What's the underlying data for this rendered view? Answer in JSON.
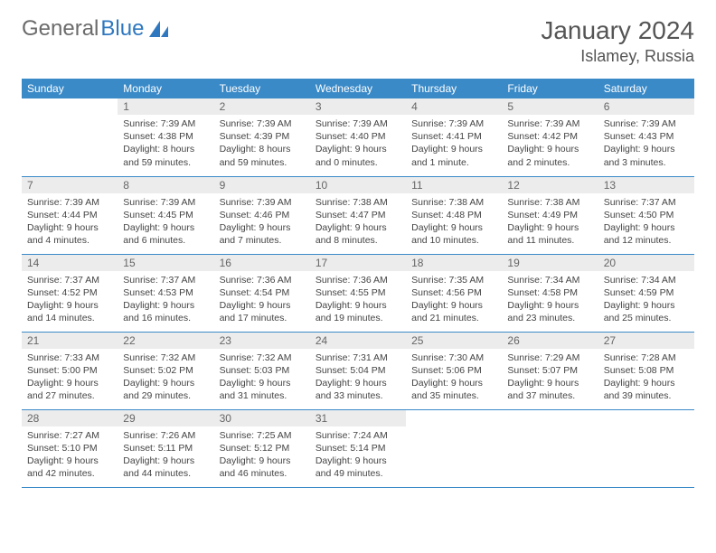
{
  "logo": {
    "word1": "General",
    "word2": "Blue"
  },
  "title": "January 2024",
  "location": "Islamey, Russia",
  "colors": {
    "header_bg": "#3a8ac8",
    "header_fg": "#ffffff",
    "daynum_bg": "#ececec",
    "row_border": "#3a8ac8",
    "logo_gray": "#6b6b6b",
    "logo_blue": "#2f78bf"
  },
  "weekdays": [
    "Sunday",
    "Monday",
    "Tuesday",
    "Wednesday",
    "Thursday",
    "Friday",
    "Saturday"
  ],
  "weeks": [
    [
      {
        "empty": true
      },
      {
        "num": "1",
        "sunrise": "Sunrise: 7:39 AM",
        "sunset": "Sunset: 4:38 PM",
        "day1": "Daylight: 8 hours",
        "day2": "and 59 minutes."
      },
      {
        "num": "2",
        "sunrise": "Sunrise: 7:39 AM",
        "sunset": "Sunset: 4:39 PM",
        "day1": "Daylight: 8 hours",
        "day2": "and 59 minutes."
      },
      {
        "num": "3",
        "sunrise": "Sunrise: 7:39 AM",
        "sunset": "Sunset: 4:40 PM",
        "day1": "Daylight: 9 hours",
        "day2": "and 0 minutes."
      },
      {
        "num": "4",
        "sunrise": "Sunrise: 7:39 AM",
        "sunset": "Sunset: 4:41 PM",
        "day1": "Daylight: 9 hours",
        "day2": "and 1 minute."
      },
      {
        "num": "5",
        "sunrise": "Sunrise: 7:39 AM",
        "sunset": "Sunset: 4:42 PM",
        "day1": "Daylight: 9 hours",
        "day2": "and 2 minutes."
      },
      {
        "num": "6",
        "sunrise": "Sunrise: 7:39 AM",
        "sunset": "Sunset: 4:43 PM",
        "day1": "Daylight: 9 hours",
        "day2": "and 3 minutes."
      }
    ],
    [
      {
        "num": "7",
        "sunrise": "Sunrise: 7:39 AM",
        "sunset": "Sunset: 4:44 PM",
        "day1": "Daylight: 9 hours",
        "day2": "and 4 minutes."
      },
      {
        "num": "8",
        "sunrise": "Sunrise: 7:39 AM",
        "sunset": "Sunset: 4:45 PM",
        "day1": "Daylight: 9 hours",
        "day2": "and 6 minutes."
      },
      {
        "num": "9",
        "sunrise": "Sunrise: 7:39 AM",
        "sunset": "Sunset: 4:46 PM",
        "day1": "Daylight: 9 hours",
        "day2": "and 7 minutes."
      },
      {
        "num": "10",
        "sunrise": "Sunrise: 7:38 AM",
        "sunset": "Sunset: 4:47 PM",
        "day1": "Daylight: 9 hours",
        "day2": "and 8 minutes."
      },
      {
        "num": "11",
        "sunrise": "Sunrise: 7:38 AM",
        "sunset": "Sunset: 4:48 PM",
        "day1": "Daylight: 9 hours",
        "day2": "and 10 minutes."
      },
      {
        "num": "12",
        "sunrise": "Sunrise: 7:38 AM",
        "sunset": "Sunset: 4:49 PM",
        "day1": "Daylight: 9 hours",
        "day2": "and 11 minutes."
      },
      {
        "num": "13",
        "sunrise": "Sunrise: 7:37 AM",
        "sunset": "Sunset: 4:50 PM",
        "day1": "Daylight: 9 hours",
        "day2": "and 12 minutes."
      }
    ],
    [
      {
        "num": "14",
        "sunrise": "Sunrise: 7:37 AM",
        "sunset": "Sunset: 4:52 PM",
        "day1": "Daylight: 9 hours",
        "day2": "and 14 minutes."
      },
      {
        "num": "15",
        "sunrise": "Sunrise: 7:37 AM",
        "sunset": "Sunset: 4:53 PM",
        "day1": "Daylight: 9 hours",
        "day2": "and 16 minutes."
      },
      {
        "num": "16",
        "sunrise": "Sunrise: 7:36 AM",
        "sunset": "Sunset: 4:54 PM",
        "day1": "Daylight: 9 hours",
        "day2": "and 17 minutes."
      },
      {
        "num": "17",
        "sunrise": "Sunrise: 7:36 AM",
        "sunset": "Sunset: 4:55 PM",
        "day1": "Daylight: 9 hours",
        "day2": "and 19 minutes."
      },
      {
        "num": "18",
        "sunrise": "Sunrise: 7:35 AM",
        "sunset": "Sunset: 4:56 PM",
        "day1": "Daylight: 9 hours",
        "day2": "and 21 minutes."
      },
      {
        "num": "19",
        "sunrise": "Sunrise: 7:34 AM",
        "sunset": "Sunset: 4:58 PM",
        "day1": "Daylight: 9 hours",
        "day2": "and 23 minutes."
      },
      {
        "num": "20",
        "sunrise": "Sunrise: 7:34 AM",
        "sunset": "Sunset: 4:59 PM",
        "day1": "Daylight: 9 hours",
        "day2": "and 25 minutes."
      }
    ],
    [
      {
        "num": "21",
        "sunrise": "Sunrise: 7:33 AM",
        "sunset": "Sunset: 5:00 PM",
        "day1": "Daylight: 9 hours",
        "day2": "and 27 minutes."
      },
      {
        "num": "22",
        "sunrise": "Sunrise: 7:32 AM",
        "sunset": "Sunset: 5:02 PM",
        "day1": "Daylight: 9 hours",
        "day2": "and 29 minutes."
      },
      {
        "num": "23",
        "sunrise": "Sunrise: 7:32 AM",
        "sunset": "Sunset: 5:03 PM",
        "day1": "Daylight: 9 hours",
        "day2": "and 31 minutes."
      },
      {
        "num": "24",
        "sunrise": "Sunrise: 7:31 AM",
        "sunset": "Sunset: 5:04 PM",
        "day1": "Daylight: 9 hours",
        "day2": "and 33 minutes."
      },
      {
        "num": "25",
        "sunrise": "Sunrise: 7:30 AM",
        "sunset": "Sunset: 5:06 PM",
        "day1": "Daylight: 9 hours",
        "day2": "and 35 minutes."
      },
      {
        "num": "26",
        "sunrise": "Sunrise: 7:29 AM",
        "sunset": "Sunset: 5:07 PM",
        "day1": "Daylight: 9 hours",
        "day2": "and 37 minutes."
      },
      {
        "num": "27",
        "sunrise": "Sunrise: 7:28 AM",
        "sunset": "Sunset: 5:08 PM",
        "day1": "Daylight: 9 hours",
        "day2": "and 39 minutes."
      }
    ],
    [
      {
        "num": "28",
        "sunrise": "Sunrise: 7:27 AM",
        "sunset": "Sunset: 5:10 PM",
        "day1": "Daylight: 9 hours",
        "day2": "and 42 minutes."
      },
      {
        "num": "29",
        "sunrise": "Sunrise: 7:26 AM",
        "sunset": "Sunset: 5:11 PM",
        "day1": "Daylight: 9 hours",
        "day2": "and 44 minutes."
      },
      {
        "num": "30",
        "sunrise": "Sunrise: 7:25 AM",
        "sunset": "Sunset: 5:12 PM",
        "day1": "Daylight: 9 hours",
        "day2": "and 46 minutes."
      },
      {
        "num": "31",
        "sunrise": "Sunrise: 7:24 AM",
        "sunset": "Sunset: 5:14 PM",
        "day1": "Daylight: 9 hours",
        "day2": "and 49 minutes."
      },
      {
        "empty": true
      },
      {
        "empty": true
      },
      {
        "empty": true
      }
    ]
  ]
}
